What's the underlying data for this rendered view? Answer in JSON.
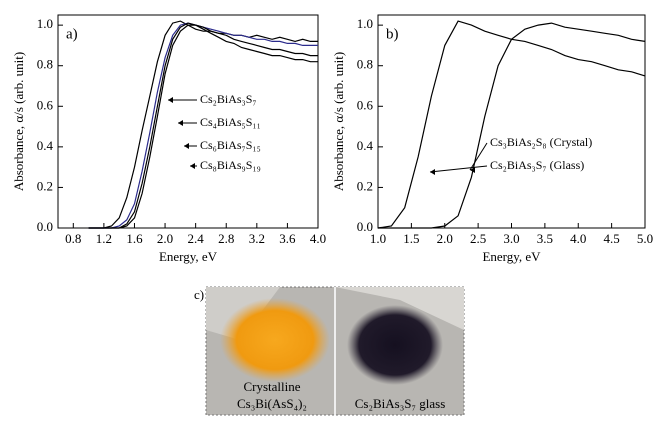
{
  "chart_data": [
    {
      "type": "line",
      "panel_label": "a)",
      "xlabel": "Energy, eV",
      "ylabel": "Absorbance, α/s (arb. unit)",
      "x": [
        1.0,
        1.1,
        1.2,
        1.3,
        1.4,
        1.5,
        1.6,
        1.7,
        1.8,
        1.9,
        2.0,
        2.1,
        2.2,
        2.3,
        2.4,
        2.5,
        2.6,
        2.7,
        2.8,
        2.9,
        3.0,
        3.1,
        3.2,
        3.3,
        3.4,
        3.5,
        3.6,
        3.7,
        3.8,
        3.9,
        4.0
      ],
      "series": [
        {
          "name": "Cs₂BiAs₃S₇",
          "color": "#000000",
          "values": [
            0,
            0,
            0,
            0.01,
            0.05,
            0.15,
            0.3,
            0.48,
            0.65,
            0.82,
            0.95,
            1.01,
            1.02,
            1.0,
            0.98,
            0.97,
            0.97,
            0.96,
            0.96,
            0.95,
            0.95,
            0.94,
            0.95,
            0.94,
            0.93,
            0.94,
            0.93,
            0.92,
            0.93,
            0.92,
            0.92
          ]
        },
        {
          "name": "Cs₄BiAs₅S₁₁",
          "color": "#2b2b8c",
          "values": [
            0,
            0,
            0,
            0,
            0.01,
            0.04,
            0.12,
            0.28,
            0.47,
            0.67,
            0.84,
            0.95,
            1.0,
            1.01,
            1.0,
            0.99,
            0.98,
            0.97,
            0.96,
            0.95,
            0.95,
            0.94,
            0.93,
            0.93,
            0.92,
            0.92,
            0.91,
            0.91,
            0.9,
            0.9,
            0.9
          ]
        },
        {
          "name": "Cs₆BiAs₇S₁₅",
          "color": "#000000",
          "values": [
            0,
            0,
            0,
            0,
            0,
            0.02,
            0.08,
            0.22,
            0.4,
            0.6,
            0.8,
            0.93,
            0.99,
            1.01,
            1.0,
            0.99,
            0.97,
            0.96,
            0.95,
            0.93,
            0.92,
            0.91,
            0.9,
            0.89,
            0.88,
            0.88,
            0.87,
            0.86,
            0.86,
            0.85,
            0.85
          ]
        },
        {
          "name": "Cs₈BiAs₉S₁₉",
          "color": "#000000",
          "values": [
            0,
            0,
            0,
            0,
            0,
            0.01,
            0.05,
            0.17,
            0.35,
            0.55,
            0.76,
            0.9,
            0.97,
            1.0,
            1.0,
            0.98,
            0.96,
            0.94,
            0.92,
            0.91,
            0.89,
            0.88,
            0.87,
            0.86,
            0.85,
            0.85,
            0.84,
            0.83,
            0.83,
            0.82,
            0.82
          ]
        }
      ],
      "xlim": [
        0.6,
        4.0
      ],
      "ylim": [
        0,
        1.05
      ],
      "xticks": [
        0.8,
        1.2,
        1.6,
        {
          "value": 2.0,
          "label": "2.0"
        },
        2.4,
        2.8,
        3.2,
        3.6,
        {
          "value": 4.0,
          "label": "4.0"
        }
      ],
      "yticks": [
        {
          "value": 0,
          "label": "0.0"
        },
        0.2,
        0.4,
        0.6,
        0.8,
        {
          "value": 1.0,
          "label": "1.0"
        }
      ]
    },
    {
      "type": "line",
      "panel_label": "b)",
      "xlabel": "Energy, eV",
      "ylabel": "Absorbance, α/s (arb. unit)",
      "x": [
        1.0,
        1.2,
        1.4,
        1.6,
        1.8,
        2.0,
        2.2,
        2.4,
        2.6,
        2.8,
        3.0,
        3.2,
        3.4,
        3.6,
        3.8,
        4.0,
        4.2,
        4.4,
        4.6,
        4.8,
        5.0
      ],
      "series": [
        {
          "name": "Cs₃BiAs₂S₈ (Crystal)",
          "color": "#000000",
          "values": [
            0,
            0.01,
            0.1,
            0.35,
            0.65,
            0.9,
            1.02,
            1.0,
            0.97,
            0.95,
            0.93,
            0.92,
            0.9,
            0.88,
            0.85,
            0.83,
            0.82,
            0.8,
            0.78,
            0.77,
            0.75
          ]
        },
        {
          "name": "Cs₂BiAs₃S₇ (Glass)",
          "color": "#000000",
          "values": [
            0,
            0,
            0,
            0,
            0,
            0.01,
            0.06,
            0.25,
            0.55,
            0.8,
            0.93,
            0.98,
            1.0,
            1.01,
            0.99,
            0.98,
            0.97,
            0.96,
            0.95,
            0.93,
            0.92
          ]
        }
      ],
      "xlim": [
        1.0,
        5.0
      ],
      "ylim": [
        0,
        1.05
      ],
      "xticks": [
        {
          "value": 1.0,
          "label": "1.0"
        },
        1.5,
        {
          "value": 2.0,
          "label": "2.0"
        },
        2.5,
        {
          "value": 3.0,
          "label": "3.0"
        },
        3.5,
        {
          "value": 4.0,
          "label": "4.0"
        },
        4.5,
        {
          "value": 5.0,
          "label": "5.0"
        }
      ],
      "yticks": [
        {
          "value": 0,
          "label": "0.0"
        },
        0.2,
        0.4,
        0.6,
        0.8,
        {
          "value": 1.0,
          "label": "1.0"
        }
      ]
    }
  ],
  "photo": {
    "panel_label": "c)",
    "left_caption": [
      "Crystalline",
      "Cs₃Bi(AsS₄)₂"
    ],
    "right_caption": "Cs₂BiAs₃S₇ glass"
  }
}
